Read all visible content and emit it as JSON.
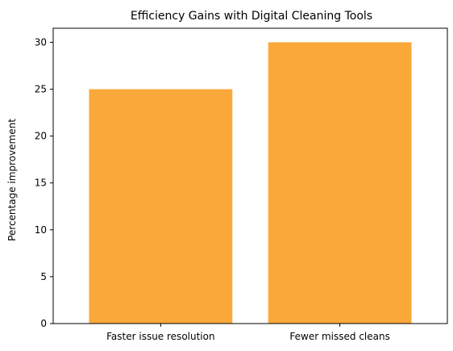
{
  "chart_data": {
    "type": "bar",
    "title": "Efficiency Gains with Digital Cleaning Tools",
    "xlabel": "",
    "ylabel": "Percentage improvement",
    "categories": [
      "Faster issue resolution",
      "Fewer missed cleans"
    ],
    "values": [
      25,
      30
    ],
    "ylim": [
      0,
      31.5
    ],
    "yticks": [
      0,
      5,
      10,
      15,
      20,
      25,
      30
    ],
    "bar_color": "#faa83a",
    "grid": false,
    "legend": "none"
  }
}
